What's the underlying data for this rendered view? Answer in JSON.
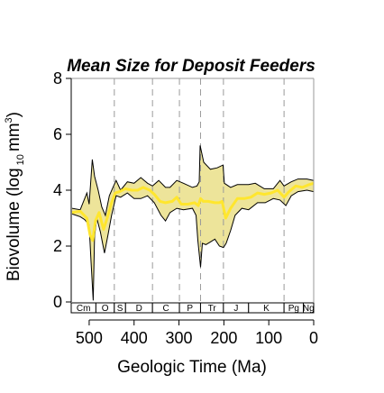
{
  "chart_data": {
    "type": "area",
    "title": "Mean Size for Deposit Feeders",
    "xlabel": "Geologic Time (Ma)",
    "ylabel": "Biovolume (log",
    "ylabel_sub": "10",
    "ylabel_unit": "mm",
    "ylabel_sup": "3",
    "ylabel_close": ")",
    "xlim": [
      540,
      0
    ],
    "ylim": [
      0,
      8
    ],
    "x_ticks": [
      500,
      400,
      300,
      200,
      100,
      0
    ],
    "y_ticks": [
      0,
      2,
      4,
      6,
      8
    ],
    "boundaries": [
      444,
      359,
      299,
      252,
      201,
      66
    ],
    "colors": {
      "band": "#EDE49A",
      "mean": "#FFE62E",
      "edge": "#000000",
      "dash": "#9a9a9a"
    },
    "periods": [
      {
        "label": "Cm",
        "start": 540,
        "end": 485
      },
      {
        "label": "O",
        "start": 485,
        "end": 444
      },
      {
        "label": "S",
        "start": 444,
        "end": 419
      },
      {
        "label": "D",
        "start": 419,
        "end": 359
      },
      {
        "label": "C",
        "start": 359,
        "end": 299
      },
      {
        "label": "P",
        "start": 299,
        "end": 252
      },
      {
        "label": "Tr",
        "start": 252,
        "end": 201
      },
      {
        "label": "J",
        "start": 201,
        "end": 145
      },
      {
        "label": "K",
        "start": 145,
        "end": 66
      },
      {
        "label": "Pg",
        "start": 66,
        "end": 23
      },
      {
        "label": "Ng",
        "start": 23,
        "end": 0
      }
    ],
    "series": [
      {
        "role": "upper",
        "points": [
          [
            538,
            3.35
          ],
          [
            520,
            3.3
          ],
          [
            505,
            3.9
          ],
          [
            500,
            3.5
          ],
          [
            493,
            5.1
          ],
          [
            488,
            4.5
          ],
          [
            480,
            4.0
          ],
          [
            472,
            3.4
          ],
          [
            464,
            3.1
          ],
          [
            455,
            3.8
          ],
          [
            447,
            4.1
          ],
          [
            440,
            4.35
          ],
          [
            430,
            4.0
          ],
          [
            415,
            4.3
          ],
          [
            400,
            4.25
          ],
          [
            385,
            4.45
          ],
          [
            370,
            4.25
          ],
          [
            359,
            4.15
          ],
          [
            345,
            4.35
          ],
          [
            330,
            4.1
          ],
          [
            320,
            4.1
          ],
          [
            305,
            4.35
          ],
          [
            290,
            4.25
          ],
          [
            270,
            4.1
          ],
          [
            260,
            4.15
          ],
          [
            255,
            4.3
          ],
          [
            253,
            5.6
          ],
          [
            245,
            5.0
          ],
          [
            230,
            4.75
          ],
          [
            215,
            4.8
          ],
          [
            202,
            4.9
          ],
          [
            199,
            4.25
          ],
          [
            185,
            4.1
          ],
          [
            170,
            4.2
          ],
          [
            145,
            4.2
          ],
          [
            130,
            4.25
          ],
          [
            110,
            4.05
          ],
          [
            90,
            4.05
          ],
          [
            75,
            4.35
          ],
          [
            66,
            4.15
          ],
          [
            50,
            4.3
          ],
          [
            35,
            4.4
          ],
          [
            15,
            4.4
          ],
          [
            0,
            4.35
          ]
        ]
      },
      {
        "role": "lower",
        "points": [
          [
            538,
            3.15
          ],
          [
            520,
            3.05
          ],
          [
            510,
            2.95
          ],
          [
            500,
            2.75
          ],
          [
            496,
            1.5
          ],
          [
            491,
            0.05
          ],
          [
            488,
            2.35
          ],
          [
            483,
            3.0
          ],
          [
            475,
            2.5
          ],
          [
            466,
            1.75
          ],
          [
            458,
            2.4
          ],
          [
            450,
            3.1
          ],
          [
            440,
            3.8
          ],
          [
            430,
            3.75
          ],
          [
            415,
            3.9
          ],
          [
            400,
            3.7
          ],
          [
            385,
            3.7
          ],
          [
            370,
            3.8
          ],
          [
            355,
            3.55
          ],
          [
            340,
            3.1
          ],
          [
            330,
            2.9
          ],
          [
            320,
            3.2
          ],
          [
            305,
            3.35
          ],
          [
            290,
            3.3
          ],
          [
            270,
            3.35
          ],
          [
            262,
            3.1
          ],
          [
            258,
            2.2
          ],
          [
            252,
            1.25
          ],
          [
            248,
            2.1
          ],
          [
            240,
            2.05
          ],
          [
            230,
            2.15
          ],
          [
            220,
            2.25
          ],
          [
            210,
            2.0
          ],
          [
            201,
            1.95
          ],
          [
            195,
            2.1
          ],
          [
            185,
            2.55
          ],
          [
            175,
            3.1
          ],
          [
            160,
            3.35
          ],
          [
            145,
            3.3
          ],
          [
            125,
            3.55
          ],
          [
            108,
            3.55
          ],
          [
            90,
            3.7
          ],
          [
            75,
            3.65
          ],
          [
            62,
            3.45
          ],
          [
            50,
            3.8
          ],
          [
            35,
            3.95
          ],
          [
            15,
            4.0
          ],
          [
            0,
            3.95
          ]
        ]
      },
      {
        "role": "mean",
        "points": [
          [
            538,
            3.2
          ],
          [
            520,
            3.25
          ],
          [
            505,
            3.0
          ],
          [
            498,
            2.4
          ],
          [
            492,
            2.2
          ],
          [
            486,
            2.9
          ],
          [
            478,
            3.2
          ],
          [
            468,
            2.6
          ],
          [
            460,
            3.0
          ],
          [
            450,
            3.55
          ],
          [
            442,
            3.9
          ],
          [
            432,
            3.95
          ],
          [
            420,
            4.05
          ],
          [
            405,
            4.0
          ],
          [
            392,
            4.0
          ],
          [
            380,
            4.1
          ],
          [
            365,
            4.0
          ],
          [
            355,
            3.85
          ],
          [
            342,
            3.6
          ],
          [
            330,
            3.55
          ],
          [
            315,
            3.6
          ],
          [
            305,
            3.75
          ],
          [
            295,
            3.5
          ],
          [
            280,
            3.5
          ],
          [
            265,
            3.55
          ],
          [
            257,
            3.45
          ],
          [
            252,
            3.7
          ],
          [
            246,
            3.6
          ],
          [
            235,
            3.6
          ],
          [
            220,
            3.55
          ],
          [
            210,
            3.55
          ],
          [
            204,
            3.6
          ],
          [
            196,
            3.0
          ],
          [
            185,
            3.35
          ],
          [
            170,
            3.7
          ],
          [
            155,
            3.7
          ],
          [
            140,
            3.75
          ],
          [
            125,
            3.9
          ],
          [
            110,
            3.85
          ],
          [
            95,
            3.9
          ],
          [
            80,
            4.0
          ],
          [
            66,
            3.75
          ],
          [
            55,
            3.95
          ],
          [
            40,
            4.15
          ],
          [
            25,
            4.1
          ],
          [
            10,
            4.2
          ],
          [
            0,
            4.25
          ]
        ]
      }
    ]
  }
}
